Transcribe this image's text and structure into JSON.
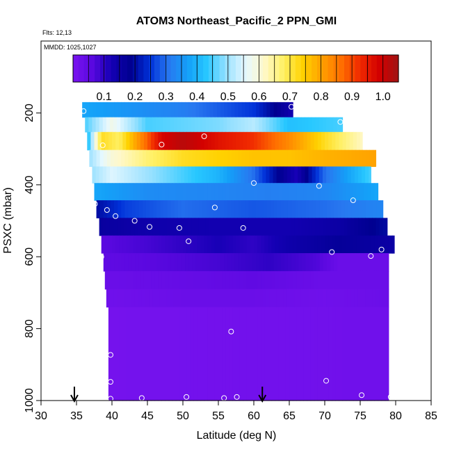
{
  "chart_data": {
    "type": "heatmap",
    "title": "ATOM3 Northeast_Pacific_2 PPN_GMI",
    "annotations": [
      "Flts: 12,13",
      "MMDD: 1025,1027"
    ],
    "xlabel": "Latitude (deg N)",
    "ylabel": "PSXC (mbar)",
    "xlim": [
      30,
      85
    ],
    "ylim": [
      1000,
      0
    ],
    "y_reversed": true,
    "x_ticks": [
      "30",
      "35",
      "40",
      "45",
      "50",
      "55",
      "60",
      "65",
      "70",
      "75",
      "80",
      "85"
    ],
    "y_ticks": [
      "200",
      "400",
      "600",
      "800",
      "1000"
    ],
    "colorbar": {
      "min": 0,
      "max": 1.05,
      "tick_labels": [
        "0.1",
        "0.2",
        "0.3",
        "0.4",
        "0.5",
        "0.6",
        "0.7",
        "0.8",
        "0.9",
        "1.0"
      ],
      "colors": [
        "#7a14f0",
        "#5a08e0",
        "#1400b4",
        "#000090",
        "#0030d8",
        "#2878f0",
        "#14a0f8",
        "#28c8ff",
        "#96e0ff",
        "#e6f8ff",
        "#fff8c8",
        "#fff064",
        "#ffd200",
        "#ffa000",
        "#ff7000",
        "#f02800",
        "#d20000",
        "#a01414"
      ]
    },
    "bands": [
      {
        "p_top": 170,
        "p_bot": 212,
        "x_start": 35.8,
        "x_end": 65.5,
        "x": [
          35.8,
          50,
          60,
          65.5
        ],
        "v": [
          0.38,
          0.32,
          0.25,
          0.13
        ]
      },
      {
        "p_top": 212,
        "p_bot": 253,
        "x_start": 36.2,
        "x_end": 72.5,
        "x": [
          36.2,
          40,
          45,
          55,
          60,
          65,
          72.5
        ],
        "v": [
          0.45,
          0.58,
          0.45,
          0.48,
          0.52,
          0.42,
          0.45
        ]
      },
      {
        "p_top": 253,
        "p_bot": 303,
        "x_start": 36.5,
        "x_end": 75.3,
        "x": [
          36.5,
          38.5,
          41,
          44,
          47,
          50,
          55,
          60,
          65,
          70,
          75.3
        ],
        "v": [
          0.4,
          0.72,
          0.68,
          0.83,
          0.98,
          1.02,
          0.96,
          0.92,
          0.83,
          0.72,
          0.62
        ]
      },
      {
        "p_top": 303,
        "p_bot": 349,
        "x_start": 36.8,
        "x_end": 77.2,
        "x": [
          36.8,
          40,
          45,
          50,
          55,
          60,
          65,
          70,
          77.2
        ],
        "v": [
          0.5,
          0.6,
          0.67,
          0.72,
          0.74,
          0.76,
          0.76,
          0.78,
          0.8
        ]
      },
      {
        "p_top": 349,
        "p_bot": 395,
        "x_start": 37.2,
        "x_end": 76.5,
        "x": [
          37.2,
          40,
          45,
          50,
          55,
          60,
          63,
          66,
          70,
          76.5
        ],
        "v": [
          0.5,
          0.55,
          0.5,
          0.45,
          0.4,
          0.3,
          0.2,
          0.12,
          0.3,
          0.45
        ]
      },
      {
        "p_top": 395,
        "p_bot": 443,
        "x_start": 37.5,
        "x_end": 77.5,
        "x": [
          37.5,
          45,
          55,
          62,
          70,
          77.5
        ],
        "v": [
          0.38,
          0.34,
          0.33,
          0.32,
          0.33,
          0.38
        ]
      },
      {
        "p_top": 443,
        "p_bot": 492,
        "x_start": 37.8,
        "x_end": 78.2,
        "x": [
          37.8,
          42,
          50,
          60,
          70,
          78.2
        ],
        "v": [
          0.2,
          0.26,
          0.3,
          0.28,
          0.3,
          0.33
        ]
      },
      {
        "p_top": 492,
        "p_bot": 541,
        "x_start": 38.2,
        "x_end": 78.8,
        "x": [
          38.2,
          45,
          55,
          65,
          72,
          78.8
        ],
        "v": [
          0.16,
          0.14,
          0.13,
          0.13,
          0.15,
          0.2
        ]
      },
      {
        "p_top": 541,
        "p_bot": 590,
        "x_start": 38.5,
        "x_end": 79.8,
        "x": [
          38.5,
          45,
          50,
          55,
          60,
          65,
          72,
          79.8
        ],
        "v": [
          0.06,
          0.08,
          0.1,
          0.12,
          0.1,
          0.14,
          0.17,
          0.15
        ]
      },
      {
        "p_top": 590,
        "p_bot": 640,
        "x_start": 38.8,
        "x_end": 79.0,
        "x": [
          38.8,
          45,
          55,
          62,
          69,
          72,
          79
        ],
        "v": [
          0.05,
          0.06,
          0.08,
          0.1,
          0.07,
          0.03,
          0.03
        ]
      },
      {
        "p_top": 640,
        "p_bot": 690,
        "x_start": 39.0,
        "x_end": 79.0,
        "x": [
          39,
          50,
          60,
          70,
          79
        ],
        "v": [
          0.03,
          0.04,
          0.05,
          0.03,
          0.03
        ]
      },
      {
        "p_top": 690,
        "p_bot": 740,
        "x_start": 39.2,
        "x_end": 79.0,
        "x": [
          39.2,
          50,
          60,
          70,
          79
        ],
        "v": [
          0.02,
          0.03,
          0.03,
          0.02,
          0.03
        ]
      },
      {
        "p_top": 740,
        "p_bot": 1000,
        "x_start": 39.5,
        "x_end": 79.0,
        "x": [
          39.5,
          79
        ],
        "v": [
          0.01,
          0.02
        ]
      }
    ],
    "points": [
      {
        "lat": 36.0,
        "p": 195
      },
      {
        "lat": 65.3,
        "p": 183
      },
      {
        "lat": 72.2,
        "p": 225
      },
      {
        "lat": 38.7,
        "p": 290
      },
      {
        "lat": 47.0,
        "p": 288
      },
      {
        "lat": 53.0,
        "p": 265
      },
      {
        "lat": 77.5,
        "p": 355
      },
      {
        "lat": 60.0,
        "p": 395
      },
      {
        "lat": 69.2,
        "p": 403
      },
      {
        "lat": 37.6,
        "p": 453
      },
      {
        "lat": 74.0,
        "p": 443
      },
      {
        "lat": 39.3,
        "p": 470
      },
      {
        "lat": 40.5,
        "p": 487
      },
      {
        "lat": 54.5,
        "p": 463
      },
      {
        "lat": 43.2,
        "p": 500
      },
      {
        "lat": 45.3,
        "p": 517
      },
      {
        "lat": 49.5,
        "p": 520
      },
      {
        "lat": 58.5,
        "p": 520
      },
      {
        "lat": 50.8,
        "p": 557
      },
      {
        "lat": 71.0,
        "p": 587
      },
      {
        "lat": 76.5,
        "p": 598
      },
      {
        "lat": 78.0,
        "p": 580
      },
      {
        "lat": 38.5,
        "p": 600
      },
      {
        "lat": 56.8,
        "p": 808
      },
      {
        "lat": 39.8,
        "p": 873
      },
      {
        "lat": 39.8,
        "p": 948
      },
      {
        "lat": 70.2,
        "p": 945
      },
      {
        "lat": 39.8,
        "p": 995
      },
      {
        "lat": 44.2,
        "p": 993
      },
      {
        "lat": 50.5,
        "p": 990
      },
      {
        "lat": 55.8,
        "p": 993
      },
      {
        "lat": 57.6,
        "p": 990
      },
      {
        "lat": 75.2,
        "p": 985
      },
      {
        "lat": 79.3,
        "p": 990
      }
    ],
    "arrows": [
      34.7,
      61.2
    ]
  }
}
